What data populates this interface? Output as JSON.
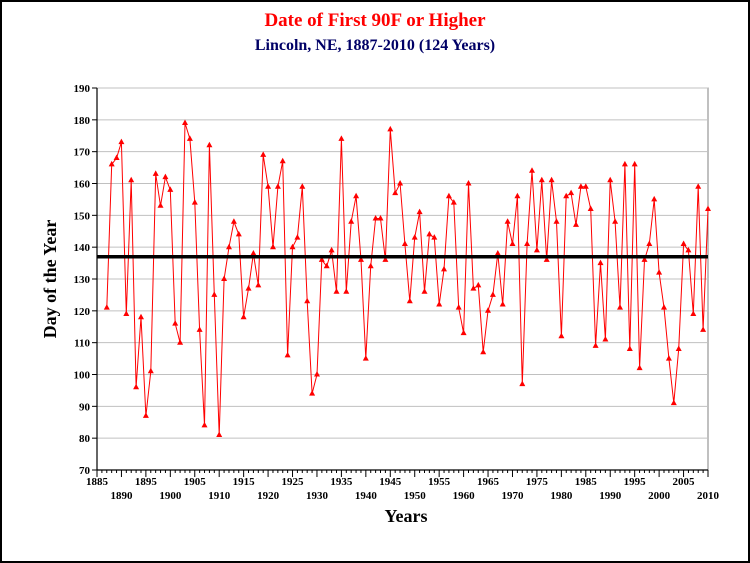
{
  "chart_data": {
    "type": "line",
    "title": "Date of First 90F or Higher",
    "subtitle": "Lincoln, NE, 1887-2010 (124 Years)",
    "xlabel": "Years",
    "ylabel": "Day of the Year",
    "xlim": [
      1885,
      2010
    ],
    "ylim": [
      70,
      190
    ],
    "y_ticks": [
      70,
      80,
      90,
      100,
      110,
      120,
      130,
      140,
      150,
      160,
      170,
      180,
      190
    ],
    "x_ticks_top": [
      1885,
      1895,
      1905,
      1915,
      1925,
      1935,
      1945,
      1955,
      1965,
      1975,
      1985,
      1995,
      2005
    ],
    "x_ticks_bottom": [
      1890,
      1900,
      1910,
      1920,
      1930,
      1940,
      1950,
      1960,
      1970,
      1980,
      1990,
      2000,
      2010
    ],
    "grid": "horizontal",
    "average_line": 137,
    "colors": {
      "series": "#ff0000",
      "average": "#000000",
      "title": "#ff0000",
      "subtitle": "#000066",
      "grid": "#c0c0c0"
    },
    "x": [
      1887,
      1888,
      1889,
      1890,
      1891,
      1892,
      1893,
      1894,
      1895,
      1896,
      1897,
      1898,
      1899,
      1900,
      1901,
      1902,
      1903,
      1904,
      1905,
      1906,
      1907,
      1908,
      1909,
      1910,
      1911,
      1912,
      1913,
      1914,
      1915,
      1916,
      1917,
      1918,
      1919,
      1920,
      1921,
      1922,
      1923,
      1924,
      1925,
      1926,
      1927,
      1928,
      1929,
      1930,
      1931,
      1932,
      1933,
      1934,
      1935,
      1936,
      1937,
      1938,
      1939,
      1940,
      1941,
      1942,
      1943,
      1944,
      1945,
      1946,
      1947,
      1948,
      1949,
      1950,
      1951,
      1952,
      1953,
      1954,
      1955,
      1956,
      1957,
      1958,
      1959,
      1960,
      1961,
      1962,
      1963,
      1964,
      1965,
      1966,
      1967,
      1968,
      1969,
      1970,
      1971,
      1972,
      1973,
      1974,
      1975,
      1976,
      1977,
      1978,
      1979,
      1980,
      1981,
      1982,
      1983,
      1984,
      1985,
      1986,
      1987,
      1988,
      1989,
      1990,
      1991,
      1992,
      1993,
      1994,
      1995,
      1996,
      1997,
      1998,
      1999,
      2000,
      2001,
      2002,
      2003,
      2004,
      2005,
      2006,
      2007,
      2008,
      2009,
      2010
    ],
    "series": [
      {
        "values": [
          121,
          166,
          168,
          173,
          119,
          161,
          96,
          118,
          87,
          101,
          163,
          153,
          162,
          158,
          116,
          110,
          179,
          174,
          154,
          114,
          84,
          172,
          125,
          81,
          130,
          140,
          148,
          144,
          118,
          127,
          138,
          128,
          169,
          159,
          140,
          159,
          167,
          106,
          140,
          143,
          159,
          123,
          94,
          100,
          136,
          134,
          139,
          126,
          174,
          126,
          148,
          156,
          136,
          105,
          134,
          149,
          149,
          136,
          177,
          157,
          160,
          141,
          123,
          143,
          151,
          126,
          144,
          143,
          122,
          133,
          156,
          154,
          121,
          113,
          160,
          127,
          128,
          107,
          120,
          125,
          138,
          122,
          148,
          141,
          156,
          97,
          141,
          164,
          139,
          161,
          136,
          161,
          148,
          112,
          156,
          157,
          147,
          159,
          159,
          152,
          109,
          135,
          111,
          161,
          148,
          121,
          166,
          108,
          166,
          102,
          136,
          141,
          155,
          132,
          121,
          105,
          91,
          108,
          141,
          139,
          119,
          159,
          114,
          152
        ]
      }
    ]
  }
}
